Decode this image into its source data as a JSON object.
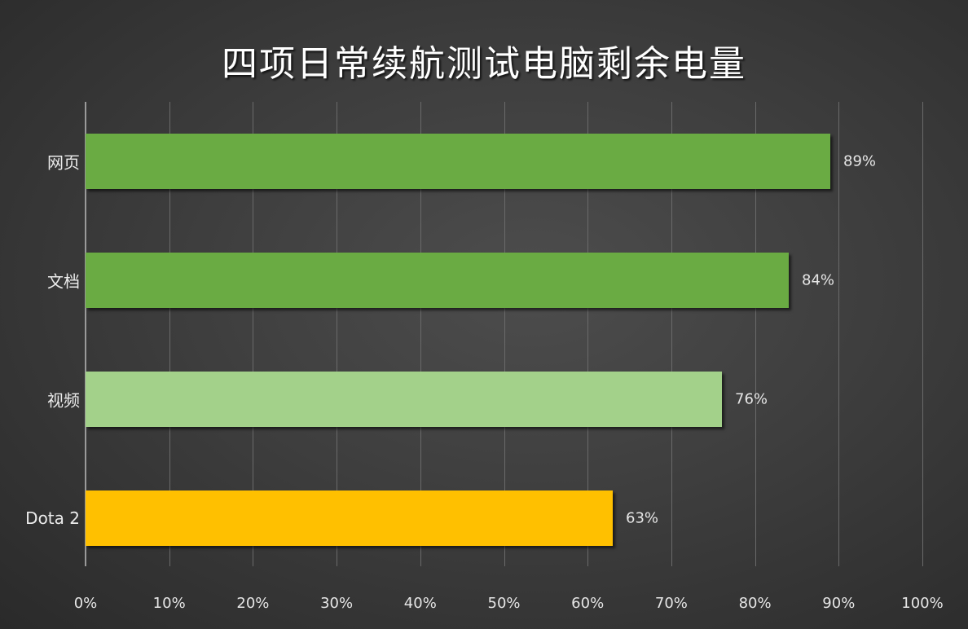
{
  "chart_data": {
    "type": "bar",
    "orientation": "horizontal",
    "title": "四项日常续航测试电脑剩余电量",
    "xlabel": "",
    "ylabel": "",
    "xlim": [
      0,
      100
    ],
    "grid": true,
    "legend": null,
    "categories": [
      "网页",
      "文档",
      "视频",
      "Dota 2"
    ],
    "values": [
      89,
      84,
      76,
      63
    ],
    "value_labels": [
      "89%",
      "84%",
      "76%",
      "63%"
    ],
    "bar_colors": [
      "#6aab43",
      "#6aab43",
      "#a3d18a",
      "#ffc000"
    ],
    "x_ticks": [
      "0%",
      "10%",
      "20%",
      "30%",
      "40%",
      "50%",
      "60%",
      "70%",
      "80%",
      "90%",
      "100%"
    ],
    "unit": "%"
  },
  "colors": {
    "background": "#3e3e3e",
    "gridline": "#6a6a6a",
    "text": "#e8e8e8"
  }
}
